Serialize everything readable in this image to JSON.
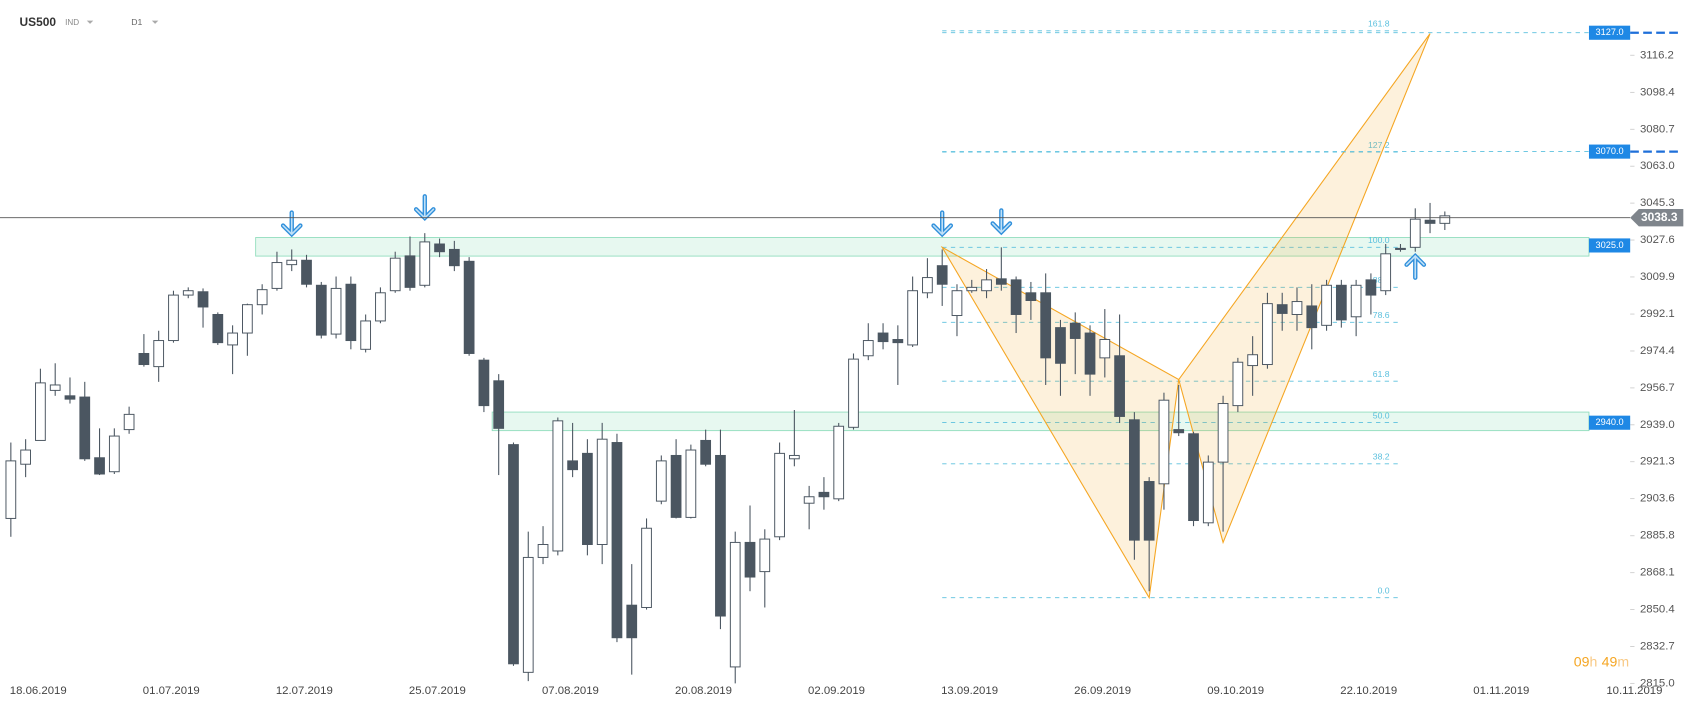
{
  "header": {
    "symbol": "US500",
    "instrument_type": "IND",
    "timeframe": "D1"
  },
  "countdown": {
    "hours": "09",
    "hours_unit": "h",
    "minutes": "49",
    "minutes_unit": "m"
  },
  "chart_data": {
    "type": "candlestick",
    "categories": [
      "18.06.2019",
      null,
      null,
      null,
      null,
      null,
      null,
      null,
      null,
      "01.07.2019",
      null,
      null,
      null,
      null,
      null,
      null,
      null,
      null,
      "12.07.2019",
      null,
      null,
      null,
      null,
      null,
      null,
      null,
      null,
      "25.07.2019",
      null,
      null,
      null,
      null,
      null,
      null,
      null,
      null,
      "07.08.2019",
      null,
      null,
      null,
      null,
      null,
      null,
      null,
      null,
      "20.08.2019",
      null,
      null,
      null,
      null,
      null,
      null,
      null,
      null,
      "02.09.2019",
      null,
      null,
      null,
      null,
      null,
      null,
      null,
      null,
      "13.09.2019",
      null,
      null,
      null,
      null,
      null,
      null,
      null,
      null,
      "26.09.2019",
      null,
      null,
      null,
      null,
      null,
      null,
      null,
      null,
      "09.10.2019",
      null,
      null,
      null,
      null,
      null,
      null,
      null,
      null,
      "22.10.2019",
      null,
      null,
      null,
      null,
      null,
      null,
      null,
      null,
      "01.11.2019",
      null,
      null,
      null,
      null,
      null,
      null,
      null,
      null,
      "10.11.2019"
    ],
    "open": [
      2894.1,
      2920.1,
      2931.5,
      2955.5,
      2952.9,
      2952.3,
      2923.2,
      2916.5,
      2936.7,
      2973.2,
      2966.9,
      2979.4,
      3001.2,
      3002.8,
      2991.9,
      2977.3,
      2983.0,
      2996.6,
      3004.4,
      3015.8,
      3017.9,
      3005.9,
      2982.5,
      3006.4,
      2975.2,
      2988.8,
      3003.3,
      3020.0,
      3005.9,
      3025.7,
      3023.1,
      3017.4,
      2970.0,
      2960.1,
      2929.5,
      2820.3,
      2875.4,
      2878.5,
      2921.7,
      2925.3,
      2881.6,
      2930.5,
      2852.5,
      2851.4,
      2902.4,
      2924.3,
      2894.6,
      2931.5,
      2924.3,
      2822.9,
      2882.6,
      2868.6,
      2885.3,
      2922.7,
      2901.4,
      2906.6,
      2903.5,
      2937.8,
      2972.1,
      2983.0,
      2979.9,
      2977.3,
      3002.3,
      3015.3,
      2991.4,
      3003.3,
      3003.3,
      3009.0,
      3008.5,
      3002.3,
      3002.3,
      2985.6,
      2987.7,
      2983.0,
      2971.1,
      2972.1,
      2941.4,
      2911.8,
      2910.7,
      2936.7,
      2934.7,
      2892.0,
      2921.1,
      2948.2,
      2967.4,
      2967.9,
      2996.6,
      2991.9,
      2996.0,
      2986.7,
      3005.9,
      2990.8,
      3008.5,
      3003.3,
      3023.6,
      3024.1,
      3037.1,
      3035.6,
      null,
      null,
      null,
      null,
      null,
      null,
      null,
      null,
      null,
      null,
      null
    ],
    "high": [
      2930.5,
      2932.1,
      2965.9,
      2968.5,
      2961.7,
      2959.6,
      2937.3,
      2937.3,
      2947.7,
      2982.5,
      2984.1,
      3003.3,
      3004.9,
      3004.4,
      2992.9,
      2986.7,
      2997.1,
      3006.4,
      3022.0,
      3023.1,
      3020.5,
      3007.5,
      3010.1,
      3010.1,
      2991.9,
      3004.9,
      3022.0,
      3029.3,
      3030.9,
      3028.3,
      3027.2,
      3019.4,
      2971.1,
      2963.3,
      2930.5,
      2887.8,
      2890.4,
      2942.5,
      2939.9,
      2932.1,
      2939.9,
      2934.7,
      2872.2,
      2894.1,
      2924.3,
      2932.1,
      2929.5,
      2936.7,
      2936.7,
      2887.8,
      2900.3,
      2888.9,
      2930.5,
      2946.1,
      2909.7,
      2913.9,
      2939.9,
      2973.2,
      2987.7,
      2987.7,
      2986.7,
      3010.1,
      3018.9,
      3023.1,
      3006.4,
      3008.5,
      3013.7,
      3024.1,
      3010.1,
      3007.5,
      3011.6,
      2989.3,
      2992.9,
      2986.7,
      2994.5,
      2991.9,
      2945.1,
      2913.9,
      2954.4,
      2958.1,
      2935.7,
      2924.3,
      2952.9,
      2971.1,
      2981.5,
      3002.3,
      3002.3,
      3004.9,
      3006.4,
      3008.5,
      3008.5,
      3008.5,
      3011.6,
      3025.7,
      3025.7,
      3042.8,
      3045.4,
      3041.3,
      null,
      null,
      null,
      null,
      null,
      null,
      null,
      null,
      null,
      null,
      null
    ],
    "low": [
      2885.3,
      2913.9,
      2931.5,
      2952.9,
      2949.2,
      2921.7,
      2914.9,
      2915.4,
      2934.7,
      2966.9,
      2959.6,
      2978.4,
      2999.7,
      2985.6,
      2977.3,
      2963.3,
      2972.1,
      2991.9,
      3003.3,
      3012.7,
      3004.9,
      2980.4,
      2980.4,
      2975.2,
      2973.7,
      2987.7,
      3002.3,
      3003.3,
      3004.9,
      3019.4,
      3012.7,
      2972.1,
      2945.1,
      2914.9,
      2823.4,
      2816.1,
      2872.2,
      2876.4,
      2913.9,
      2876.4,
      2872.2,
      2834.8,
      2819.2,
      2850.4,
      2900.9,
      2894.1,
      2894.1,
      2919.1,
      2841.0,
      2815.0,
      2859.2,
      2851.4,
      2883.7,
      2919.1,
      2888.9,
      2898.3,
      2902.4,
      2936.7,
      2970.0,
      2975.2,
      2958.1,
      2976.3,
      2999.7,
      2996.0,
      2981.5,
      3002.3,
      2999.7,
      3003.3,
      2983.0,
      2989.3,
      2958.1,
      2952.9,
      2963.3,
      2952.9,
      2961.7,
      2939.9,
      2874.3,
      2859.2,
      2898.3,
      2933.6,
      2890.4,
      2890.4,
      2887.8,
      2945.1,
      2952.9,
      2965.9,
      2984.1,
      2984.1,
      2975.2,
      2984.1,
      2985.6,
      2981.5,
      2991.9,
      3001.2,
      3022.0,
      3022.0,
      3030.9,
      3032.4,
      null,
      null,
      null,
      null,
      null,
      null,
      null,
      null,
      null,
      null,
      null
    ],
    "close": [
      2921.7,
      2926.9,
      2959.1,
      2958.1,
      2951.3,
      2922.7,
      2915.4,
      2933.6,
      2944.0,
      2967.9,
      2979.4,
      3001.2,
      3003.3,
      2995.5,
      2978.4,
      2983.0,
      2996.6,
      3003.8,
      3016.8,
      3017.9,
      3006.4,
      2982.0,
      3004.4,
      2979.4,
      2988.8,
      3002.3,
      3018.9,
      3004.9,
      3026.7,
      3022.0,
      3015.3,
      2973.2,
      2948.2,
      2937.3,
      2824.4,
      2875.4,
      2881.6,
      2940.9,
      2917.5,
      2881.6,
      2932.1,
      2836.9,
      2836.9,
      2889.4,
      2921.7,
      2894.6,
      2926.9,
      2920.1,
      2847.3,
      2882.6,
      2866.0,
      2884.2,
      2925.3,
      2924.3,
      2904.5,
      2904.5,
      2938.3,
      2970.5,
      2979.4,
      2978.9,
      2978.4,
      3003.3,
      3009.6,
      3006.4,
      3003.3,
      3004.9,
      3008.5,
      3006.4,
      2991.9,
      2998.6,
      2971.1,
      2968.5,
      2980.4,
      2963.3,
      2979.9,
      2943.0,
      2883.7,
      2883.7,
      2950.8,
      2935.2,
      2893.1,
      2921.1,
      2949.2,
      2969.0,
      2972.6,
      2997.1,
      2992.4,
      2998.1,
      2985.6,
      3005.9,
      2989.3,
      3005.9,
      3001.2,
      3021.0,
      3023.1,
      3037.6,
      3035.6,
      3039.2,
      null,
      null,
      null,
      null,
      null,
      null,
      null,
      null,
      null,
      null,
      null
    ],
    "colors": {
      "up": "#ffffff",
      "down": "#4b5661",
      "outline": "#4b5661"
    },
    "ylim": [
      2814,
      3142.7
    ],
    "yticks": [
      3116.2,
      3098.4,
      3080.7,
      {
        "value": 3063,
        "label": "3063.0"
      },
      3045.3,
      3027.6,
      3009.9,
      2992.1,
      2974.4,
      2956.7,
      {
        "value": 2939,
        "label": "2939.0"
      },
      2921.3,
      2903.6,
      2885.8,
      2868.1,
      2850.4,
      2832.7,
      {
        "value": 2815,
        "label": "2815.0"
      }
    ],
    "last_price": 3038.3,
    "zones": [
      {
        "value": 3025,
        "label": "3025.0",
        "range": [
          3019.9,
          3028.8
        ],
        "start_index": 17
      },
      {
        "value": 2940,
        "label": "2940.0",
        "range": [
          2936.2,
          2945.1
        ],
        "start_index": 33
      }
    ],
    "targets": [
      {
        "value": 3127,
        "label": "3127.0"
      },
      {
        "value": 3070,
        "label": "3070.0"
      }
    ],
    "pattern": {
      "color": "#f5a623",
      "points": [
        {
          "index": 63,
          "price": 3024.1
        },
        {
          "index": 77,
          "price": 2856.1
        },
        {
          "index": 79,
          "price": 2960.7
        },
        {
          "index": 82,
          "price": 2882.6
        },
        {
          "index": 96,
          "price": 3126.6
        }
      ]
    },
    "fib": {
      "end_index": 94,
      "color": "#5bc0de",
      "levels": [
        161.8,
        127.2,
        {
          "value": 100,
          "label": "100.0"
        },
        88.6,
        78.6,
        61.8,
        {
          "value": 50,
          "label": "50.0"
        },
        38.2,
        {
          "value": 0,
          "label": "0.0"
        }
      ]
    },
    "signals": [
      {
        "index": 19,
        "direction": "down"
      },
      {
        "index": 28,
        "direction": "down"
      },
      {
        "index": 63,
        "direction": "down"
      },
      {
        "index": 67,
        "direction": "down"
      },
      {
        "index": 95,
        "direction": "up"
      }
    ]
  }
}
